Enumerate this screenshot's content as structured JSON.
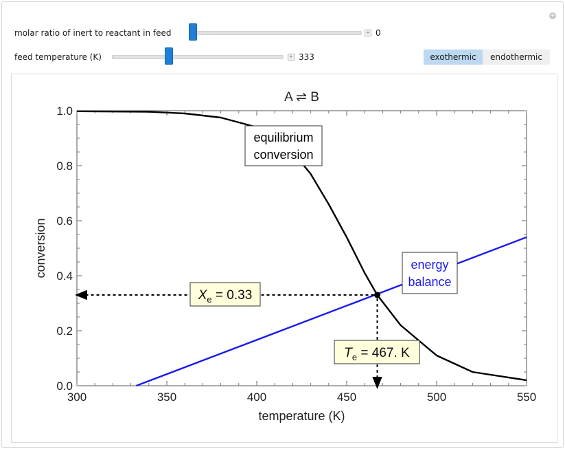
{
  "controls": {
    "inert_ratio": {
      "label": "molar ratio of inert to reactant in feed",
      "value": "0",
      "fraction": 0.0
    },
    "feed_temp": {
      "label": "feed temperature (K)",
      "value": "333",
      "fraction": 0.33
    },
    "reaction_type": {
      "options": [
        "exothermic",
        "endothermic"
      ],
      "selected": "exothermic"
    }
  },
  "chart_data": {
    "type": "line",
    "title": "A ⇌ B",
    "xlabel": "temperature (K)",
    "ylabel": "conversion",
    "xlim": [
      300,
      550
    ],
    "ylim": [
      0,
      1.0
    ],
    "xticks": [
      "300",
      "350",
      "400",
      "450",
      "500",
      "550"
    ],
    "yticks": [
      "0.0",
      "0.2",
      "0.4",
      "0.6",
      "0.8",
      "1.0"
    ],
    "grid": false,
    "series": [
      {
        "label": "equilibrium\nconversion",
        "color": "#000000",
        "x": [
          300,
          340,
          360,
          380,
          400,
          410,
          420,
          430,
          440,
          450,
          460,
          467,
          480,
          500,
          520,
          550
        ],
        "y": [
          0.998,
          0.996,
          0.99,
          0.975,
          0.94,
          0.905,
          0.85,
          0.77,
          0.66,
          0.54,
          0.41,
          0.33,
          0.22,
          0.11,
          0.05,
          0.02
        ]
      },
      {
        "label": "energy\nbalance",
        "color": "#1a1aee",
        "x": [
          333,
          550
        ],
        "y": [
          0.0,
          0.54
        ]
      }
    ],
    "intersection": {
      "x": 467,
      "y": 0.33
    },
    "annotations": {
      "xe_label": "X",
      "xe_sub": "e",
      "xe_value": " = 0.33",
      "te_label": "T",
      "te_sub": "e",
      "te_value": " = 467. K"
    }
  }
}
